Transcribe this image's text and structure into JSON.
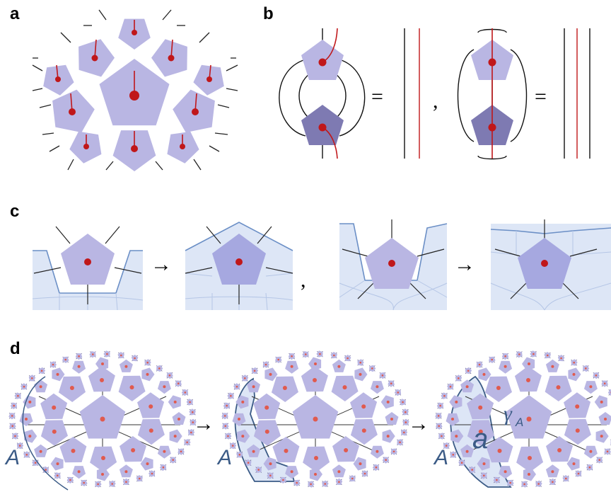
{
  "panels": {
    "a": {
      "label": "a"
    },
    "b": {
      "label": "b",
      "equals": "=",
      "comma": ","
    },
    "c": {
      "label": "c",
      "arrow": "→",
      "comma": ","
    },
    "d": {
      "label": "d",
      "arrow": "→",
      "region": "A",
      "bulk": "a",
      "gamma": "γ",
      "gamma_sub": "A"
    }
  },
  "colors": {
    "tensor_light": "#b9b6e3",
    "tensor_mid": "#a6a8e0",
    "tensor_dark": "#7e7ab2",
    "leg": "#222222",
    "red_leg": "#c0171a",
    "region_fill": "#dde6f6",
    "region_line": "#6b8fc6",
    "d_outline": "#3b5b86",
    "d_dot": "#e05a4e"
  }
}
